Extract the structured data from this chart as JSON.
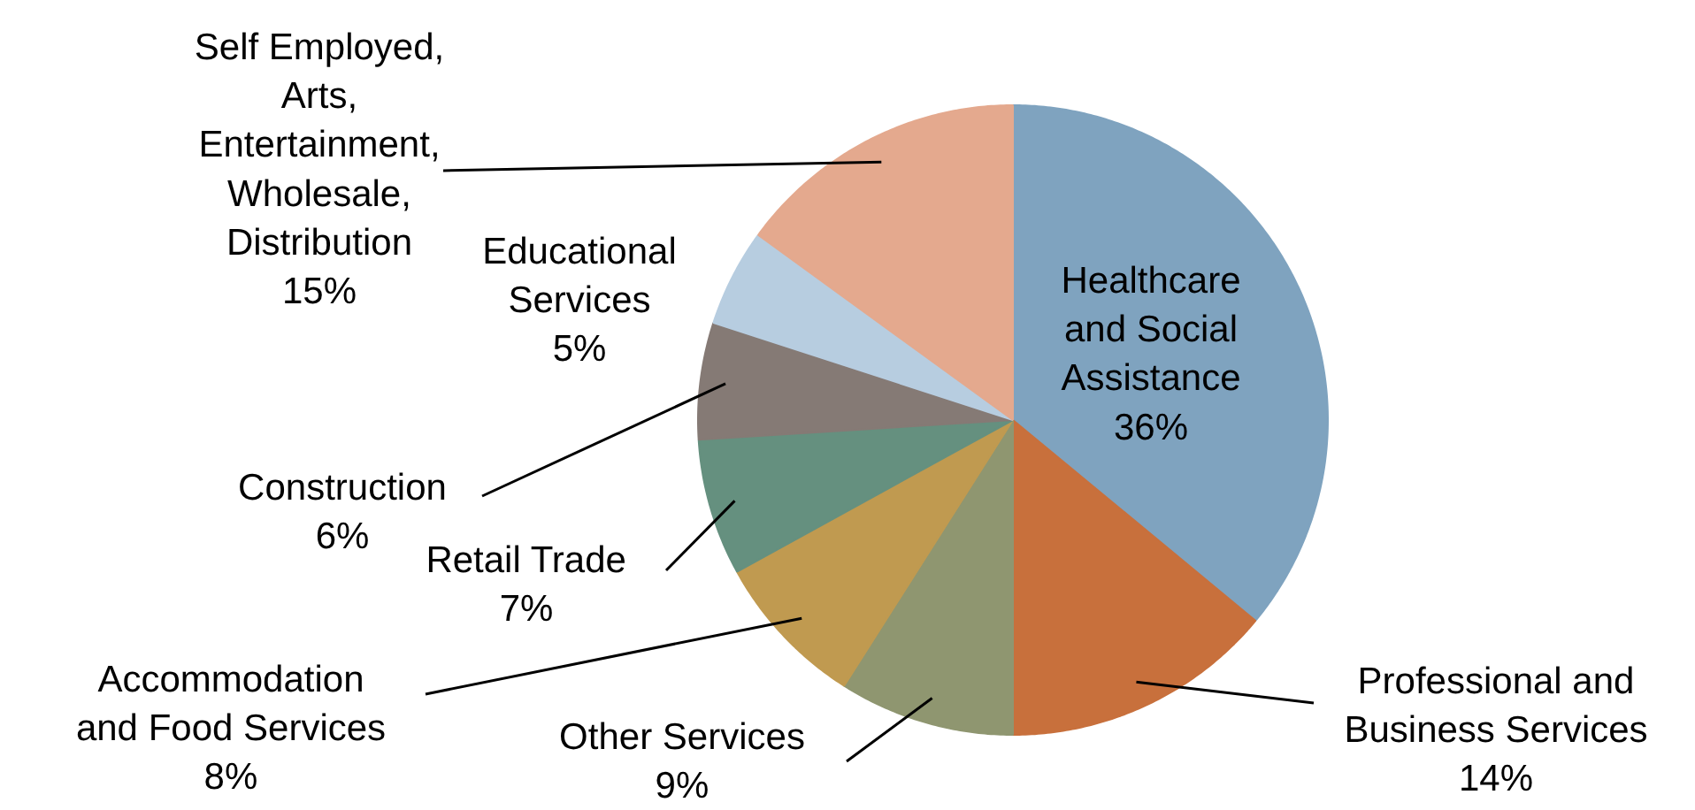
{
  "chart_data": {
    "type": "pie",
    "categories": [
      "Healthcare\nand Social\nAssistance",
      "Professional and\nBusiness Services",
      "Other Services",
      "Accommodation\nand Food Services",
      "Retail Trade",
      "Construction",
      "Educational\nServices",
      "Self Employed,\nArts,\nEntertainment,\nWholesale,\nDistribution"
    ],
    "values": [
      36,
      14,
      9,
      8,
      7,
      6,
      5,
      15
    ],
    "colors": [
      "#7fa3bf",
      "#c8703c",
      "#8f9670",
      "#c09a50",
      "#65907f",
      "#857a75",
      "#b7cde0",
      "#e4a98e"
    ],
    "value_labels": [
      "36%",
      "14%",
      "9%",
      "8%",
      "7%",
      "6%",
      "5%",
      "15%"
    ]
  }
}
